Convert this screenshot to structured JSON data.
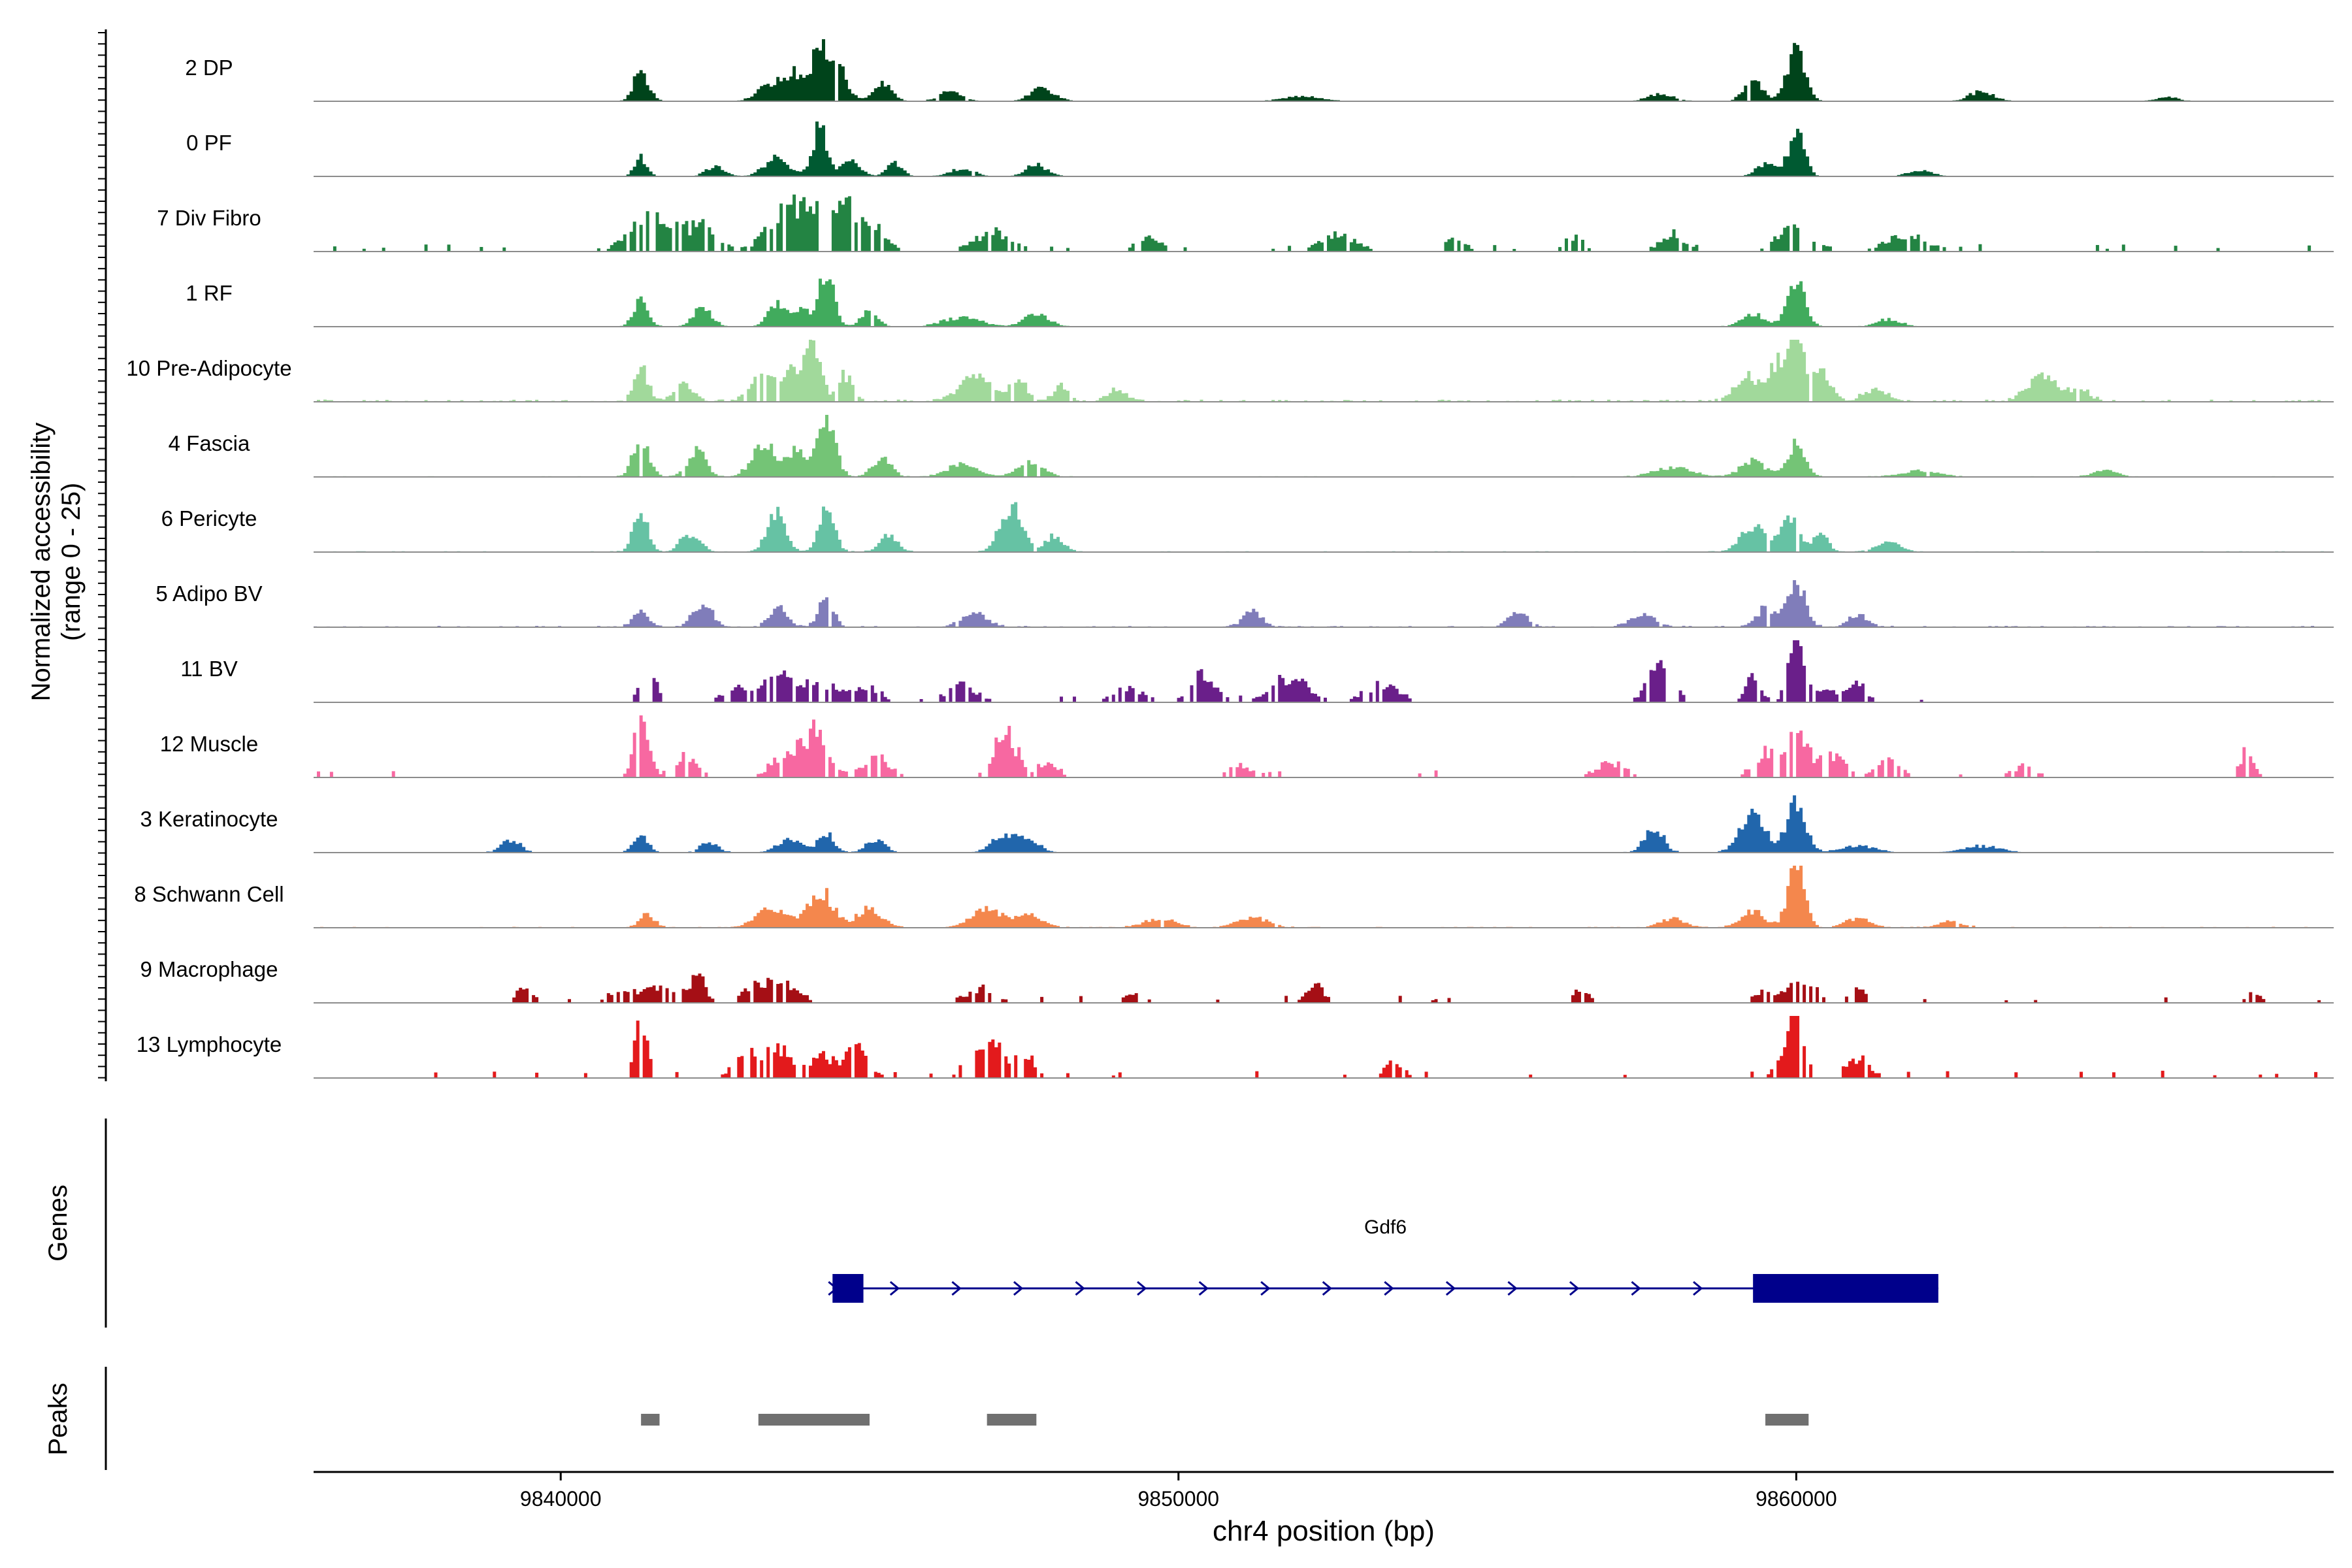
{
  "chart_data": {
    "type": "coverage",
    "ylabel_line1": "Normalized accessibility",
    "ylabel_line2": "(range 0 - 25)",
    "xlabel": "chr4 position (bp)",
    "xlim": [
      9836000,
      9868700
    ],
    "x_ticks": [
      9840000,
      9850000,
      9860000
    ],
    "x_tick_labels": [
      "9840000",
      "9850000",
      "9860000"
    ],
    "genes_label": "Genes",
    "peaks_label": "Peaks",
    "tracks": [
      {
        "name": "2 DP",
        "color": "#00441b",
        "mode": "cont",
        "noise": 0.07,
        "peaks": [
          [
            9841300,
            0.5,
            120
          ],
          [
            9843400,
            0.3,
            200
          ],
          [
            9843800,
            0.42,
            150
          ],
          [
            9844200,
            0.95,
            110
          ],
          [
            9844500,
            0.55,
            140
          ],
          [
            9845200,
            0.28,
            150
          ],
          [
            9846300,
            0.15,
            180
          ],
          [
            9847800,
            0.2,
            200
          ],
          [
            9852000,
            0.08,
            300
          ],
          [
            9857800,
            0.12,
            200
          ],
          [
            9859300,
            0.35,
            150
          ],
          [
            9860000,
            0.85,
            140
          ],
          [
            9863000,
            0.15,
            200
          ],
          [
            9866000,
            0.08,
            150
          ]
        ]
      },
      {
        "name": "0 PF",
        "color": "#005a32",
        "mode": "cont",
        "noise": 0.04,
        "peaks": [
          [
            9841300,
            0.3,
            100
          ],
          [
            9842500,
            0.15,
            150
          ],
          [
            9843500,
            0.3,
            200
          ],
          [
            9844200,
            0.8,
            120
          ],
          [
            9844700,
            0.25,
            150
          ],
          [
            9845400,
            0.22,
            120
          ],
          [
            9846500,
            0.12,
            200
          ],
          [
            9847700,
            0.18,
            180
          ],
          [
            9859500,
            0.2,
            150
          ],
          [
            9860000,
            0.7,
            130
          ],
          [
            9862000,
            0.1,
            200
          ]
        ]
      },
      {
        "name": "7 Div Fibro",
        "color": "#238443",
        "mode": "blocks",
        "noise": 0.55,
        "peaks": [
          [
            9841500,
            0.6,
            350
          ],
          [
            9842300,
            0.4,
            250
          ],
          [
            9843600,
            0.5,
            300
          ],
          [
            9844300,
            0.9,
            400
          ],
          [
            9845000,
            0.4,
            250
          ],
          [
            9847000,
            0.35,
            300
          ],
          [
            9849500,
            0.25,
            200
          ],
          [
            9852600,
            0.3,
            300
          ],
          [
            9854500,
            0.25,
            150
          ],
          [
            9856400,
            0.25,
            150
          ],
          [
            9858000,
            0.3,
            200
          ],
          [
            9860000,
            0.4,
            300
          ],
          [
            9861800,
            0.3,
            350
          ]
        ]
      },
      {
        "name": "1 RF",
        "color": "#41ab5d",
        "mode": "cont",
        "noise": 0.05,
        "peaks": [
          [
            9841300,
            0.4,
            120
          ],
          [
            9842300,
            0.3,
            150
          ],
          [
            9843500,
            0.35,
            150
          ],
          [
            9843900,
            0.3,
            120
          ],
          [
            9844300,
            0.85,
            120
          ],
          [
            9845000,
            0.3,
            130
          ],
          [
            9846500,
            0.15,
            300
          ],
          [
            9847700,
            0.2,
            200
          ],
          [
            9859300,
            0.2,
            200
          ],
          [
            9860000,
            0.75,
            140
          ],
          [
            9861500,
            0.12,
            200
          ]
        ]
      },
      {
        "name": "10 Pre-Adipocyte",
        "color": "#a1d99b",
        "mode": "cont",
        "noise": 0.3,
        "peaks": [
          [
            9841300,
            0.5,
            120
          ],
          [
            9842000,
            0.3,
            150
          ],
          [
            9843300,
            0.45,
            200
          ],
          [
            9843800,
            0.5,
            150
          ],
          [
            9844100,
            0.85,
            120
          ],
          [
            9844600,
            0.4,
            120
          ],
          [
            9846700,
            0.4,
            250
          ],
          [
            9847400,
            0.35,
            150
          ],
          [
            9848100,
            0.25,
            120
          ],
          [
            9849000,
            0.2,
            150
          ],
          [
            9859200,
            0.4,
            200
          ],
          [
            9859700,
            0.6,
            150
          ],
          [
            9860000,
            1.0,
            120
          ],
          [
            9860400,
            0.5,
            150
          ],
          [
            9861300,
            0.2,
            200
          ],
          [
            9864000,
            0.4,
            250
          ],
          [
            9864600,
            0.2,
            150
          ]
        ]
      },
      {
        "name": "4 Fascia",
        "color": "#74c476",
        "mode": "cont",
        "noise": 0.1,
        "peaks": [
          [
            9841300,
            0.6,
            130
          ],
          [
            9842200,
            0.4,
            150
          ],
          [
            9843300,
            0.5,
            200
          ],
          [
            9843800,
            0.4,
            150
          ],
          [
            9844300,
            1.0,
            140
          ],
          [
            9845200,
            0.3,
            150
          ],
          [
            9846500,
            0.2,
            250
          ],
          [
            9847600,
            0.25,
            200
          ],
          [
            9858000,
            0.15,
            300
          ],
          [
            9859300,
            0.25,
            200
          ],
          [
            9860000,
            0.5,
            150
          ],
          [
            9862000,
            0.1,
            300
          ],
          [
            9865000,
            0.1,
            200
          ]
        ]
      },
      {
        "name": "6 Pericyte",
        "color": "#66c2a4",
        "mode": "cont",
        "noise": 0.12,
        "peaks": [
          [
            9841300,
            0.6,
            120
          ],
          [
            9842100,
            0.3,
            150
          ],
          [
            9843500,
            0.6,
            150
          ],
          [
            9844300,
            0.65,
            130
          ],
          [
            9845300,
            0.25,
            150
          ],
          [
            9847300,
            0.75,
            180
          ],
          [
            9848000,
            0.25,
            150
          ],
          [
            9859300,
            0.4,
            200
          ],
          [
            9859900,
            0.55,
            150
          ],
          [
            9860400,
            0.3,
            120
          ],
          [
            9861500,
            0.15,
            200
          ]
        ]
      },
      {
        "name": "5 Adipo BV",
        "color": "#807dba",
        "mode": "cont",
        "noise": 0.18,
        "peaks": [
          [
            9841300,
            0.3,
            120
          ],
          [
            9842300,
            0.4,
            150
          ],
          [
            9843500,
            0.3,
            150
          ],
          [
            9844300,
            0.45,
            120
          ],
          [
            9846700,
            0.25,
            200
          ],
          [
            9851200,
            0.25,
            150
          ],
          [
            9855500,
            0.25,
            150
          ],
          [
            9857500,
            0.2,
            200
          ],
          [
            9859500,
            0.3,
            150
          ],
          [
            9860000,
            0.75,
            140
          ],
          [
            9861000,
            0.2,
            150
          ]
        ]
      },
      {
        "name": "11 BV",
        "color": "#6a1f8a",
        "mode": "blocks",
        "noise": 0.2,
        "peaks": [
          [
            9841400,
            0.7,
            120
          ],
          [
            9843000,
            0.3,
            300
          ],
          [
            9843600,
            0.4,
            200
          ],
          [
            9844200,
            0.35,
            300
          ],
          [
            9845000,
            0.25,
            200
          ],
          [
            9846500,
            0.3,
            250
          ],
          [
            9849200,
            0.25,
            250
          ],
          [
            9850400,
            0.55,
            200
          ],
          [
            9851800,
            0.45,
            300
          ],
          [
            9853300,
            0.3,
            300
          ],
          [
            9857800,
            0.6,
            200
          ],
          [
            9859300,
            0.4,
            120
          ],
          [
            9860000,
            1.0,
            130
          ],
          [
            9860500,
            0.3,
            150
          ],
          [
            9861000,
            0.3,
            150
          ]
        ]
      },
      {
        "name": "12 Muscle",
        "color": "#f768a1",
        "mode": "blocks",
        "noise": 0.2,
        "peaks": [
          [
            9841300,
            1.0,
            120
          ],
          [
            9842000,
            0.35,
            200
          ],
          [
            9843700,
            0.5,
            250
          ],
          [
            9844200,
            0.75,
            180
          ],
          [
            9845100,
            0.35,
            250
          ],
          [
            9847200,
            0.8,
            200
          ],
          [
            9847900,
            0.3,
            150
          ],
          [
            9851000,
            0.2,
            200
          ],
          [
            9857000,
            0.25,
            250
          ],
          [
            9859500,
            0.4,
            200
          ],
          [
            9860000,
            0.75,
            200
          ],
          [
            9860600,
            0.4,
            200
          ],
          [
            9861500,
            0.3,
            200
          ],
          [
            9863700,
            0.2,
            200
          ],
          [
            9867300,
            0.45,
            120
          ]
        ]
      },
      {
        "name": "3 Keratinocyte",
        "color": "#2166ac",
        "mode": "cont",
        "noise": 0.08,
        "peaks": [
          [
            9839200,
            0.2,
            150
          ],
          [
            9841300,
            0.25,
            120
          ],
          [
            9842400,
            0.15,
            150
          ],
          [
            9843700,
            0.2,
            200
          ],
          [
            9844300,
            0.3,
            130
          ],
          [
            9845100,
            0.2,
            150
          ],
          [
            9847200,
            0.3,
            200
          ],
          [
            9847600,
            0.2,
            150
          ],
          [
            9857700,
            0.4,
            150
          ],
          [
            9859300,
            0.6,
            200
          ],
          [
            9860000,
            0.8,
            150
          ],
          [
            9861000,
            0.1,
            300
          ],
          [
            9863000,
            0.1,
            300
          ]
        ]
      },
      {
        "name": "8 Schwann Cell",
        "color": "#f4874d",
        "mode": "cont",
        "noise": 0.12,
        "peaks": [
          [
            9841400,
            0.2,
            130
          ],
          [
            9843400,
            0.3,
            250
          ],
          [
            9844200,
            0.6,
            200
          ],
          [
            9845000,
            0.3,
            200
          ],
          [
            9846900,
            0.3,
            250
          ],
          [
            9847600,
            0.2,
            200
          ],
          [
            9849700,
            0.15,
            250
          ],
          [
            9851200,
            0.15,
            250
          ],
          [
            9858000,
            0.15,
            200
          ],
          [
            9859300,
            0.25,
            200
          ],
          [
            9860000,
            1.0,
            130
          ],
          [
            9861000,
            0.15,
            200
          ],
          [
            9862500,
            0.1,
            200
          ]
        ]
      },
      {
        "name": "9 Macrophage",
        "color": "#a50f15",
        "mode": "blocks",
        "noise": 0.25,
        "peaks": [
          [
            9839400,
            0.25,
            150
          ],
          [
            9841000,
            0.25,
            200
          ],
          [
            9841600,
            0.3,
            200
          ],
          [
            9842200,
            0.45,
            150
          ],
          [
            9843200,
            0.4,
            200
          ],
          [
            9843700,
            0.3,
            200
          ],
          [
            9846800,
            0.25,
            250
          ],
          [
            9849300,
            0.2,
            150
          ],
          [
            9852200,
            0.3,
            150
          ],
          [
            9856500,
            0.2,
            150
          ],
          [
            9859500,
            0.25,
            150
          ],
          [
            9860100,
            0.45,
            200
          ],
          [
            9861000,
            0.25,
            150
          ],
          [
            9867400,
            0.2,
            120
          ]
        ]
      },
      {
        "name": "13 Lymphocyte",
        "color": "#e31a1c",
        "mode": "blocks",
        "noise": 0.45,
        "peaks": [
          [
            9841300,
            1.0,
            110
          ],
          [
            9843000,
            0.4,
            200
          ],
          [
            9843500,
            0.55,
            200
          ],
          [
            9844200,
            0.4,
            200
          ],
          [
            9844800,
            0.5,
            200
          ],
          [
            9846700,
            0.35,
            200
          ],
          [
            9847000,
            0.55,
            150
          ],
          [
            9847500,
            0.45,
            150
          ],
          [
            9853500,
            0.3,
            150
          ],
          [
            9859800,
            0.3,
            150
          ],
          [
            9860000,
            1.0,
            130
          ],
          [
            9861000,
            0.35,
            200
          ]
        ]
      }
    ],
    "gene": {
      "name": "Gdf6",
      "start": 9844400,
      "end": 9862300,
      "exons": [
        [
          9844400,
          9844900
        ],
        [
          9859300,
          9862300
        ]
      ],
      "strand": "+",
      "color": "#00008b"
    },
    "peak_regions": [
      [
        9841300,
        9841600
      ],
      [
        9843200,
        9845000
      ],
      [
        9846900,
        9847700
      ],
      [
        9859500,
        9860200
      ]
    ],
    "peak_color": "#707070"
  }
}
